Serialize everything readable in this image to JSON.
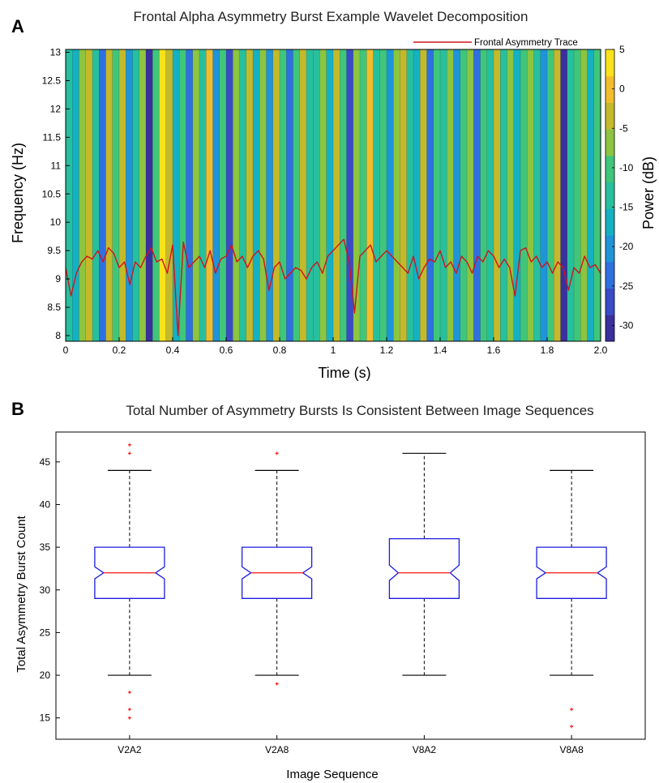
{
  "chart_data": [
    {
      "panel": "A",
      "type": "heatmap",
      "title": "Frontal Alpha Asymmetry Burst Example Wavelet Decomposition",
      "xlabel": "Time (s)",
      "ylabel": "Frequency (Hz)",
      "colorbar_label": "Power (dB)",
      "xlim": [
        0,
        2.0
      ],
      "ylim": [
        7.9,
        13.05
      ],
      "clim": [
        -32,
        5
      ],
      "x_ticks": [
        0,
        0.2,
        0.4,
        0.6,
        0.8,
        1,
        1.2,
        1.4,
        1.6,
        1.8,
        2.0
      ],
      "x_tick_labels": [
        "0",
        "0.2",
        "0.4",
        "0.6",
        "0.8",
        "1",
        "1.2",
        "1.4",
        "1.6",
        "1.8",
        "2.0"
      ],
      "y_ticks": [
        8,
        8.5,
        9,
        9.5,
        10,
        10.5,
        11,
        11.5,
        12,
        12.5,
        13
      ],
      "y_tick_labels": [
        "8",
        "8.5",
        "9",
        "9.5",
        "10",
        "10.5",
        "11",
        "11.5",
        "12",
        "12.5",
        "13"
      ],
      "colorbar_ticks": [
        5,
        0,
        -5,
        -10,
        -15,
        -20,
        -25,
        -30
      ],
      "colorbar_tick_labels": [
        "5",
        "0",
        "-5",
        "-10",
        "-15",
        "-20",
        "-25",
        "-30"
      ],
      "colors": [
        "#3b2f9e",
        "#3a4bc8",
        "#2e70e0",
        "#1f94d8",
        "#14b1c2",
        "#27c09e",
        "#3fc67a",
        "#8dc440",
        "#c4b92a",
        "#f2bd2c",
        "#f9e21a"
      ],
      "power_bands_db": [
        -12,
        -18,
        -8,
        -3,
        -15,
        -25,
        -5,
        -10,
        -2,
        -20,
        -13,
        -6,
        -29,
        -11,
        3,
        -4,
        -16,
        -9,
        -22,
        -7,
        -14,
        -1,
        -19,
        -10,
        -26,
        -6,
        -12,
        -3,
        -17,
        -8,
        -21,
        -5,
        -11,
        -24,
        -9,
        -2,
        -15,
        -13,
        -7,
        -18,
        -4,
        -11,
        -28,
        -6,
        -10,
        0,
        -14,
        -9,
        -20,
        -8,
        -5,
        -12,
        -16,
        -3,
        -22,
        -9,
        -13,
        -7,
        -19,
        -11,
        -6,
        -25,
        -10,
        -15,
        -4,
        -12,
        -8,
        -17,
        -10,
        -7,
        -14,
        -20,
        -9,
        -5,
        -30,
        -13,
        -11,
        -6,
        -16,
        -9
      ],
      "legend": [
        {
          "name": "Frontal Asymmetry Trace",
          "color": "#d0141e"
        }
      ],
      "legend_position": "top-right",
      "trace": {
        "name": "Frontal Asymmetry Trace",
        "x": [
          0,
          0.02,
          0.04,
          0.06,
          0.08,
          0.1,
          0.12,
          0.14,
          0.16,
          0.18,
          0.2,
          0.22,
          0.24,
          0.26,
          0.28,
          0.3,
          0.32,
          0.34,
          0.36,
          0.38,
          0.4,
          0.42,
          0.44,
          0.46,
          0.48,
          0.5,
          0.52,
          0.54,
          0.56,
          0.58,
          0.6,
          0.62,
          0.64,
          0.66,
          0.68,
          0.7,
          0.72,
          0.74,
          0.76,
          0.78,
          0.8,
          0.82,
          0.84,
          0.86,
          0.88,
          0.9,
          0.92,
          0.94,
          0.96,
          0.98,
          1.0,
          1.02,
          1.04,
          1.06,
          1.08,
          1.1,
          1.12,
          1.14,
          1.16,
          1.18,
          1.2,
          1.22,
          1.24,
          1.26,
          1.28,
          1.3,
          1.32,
          1.34,
          1.36,
          1.38,
          1.4,
          1.42,
          1.44,
          1.46,
          1.48,
          1.5,
          1.52,
          1.54,
          1.56,
          1.58,
          1.6,
          1.62,
          1.64,
          1.66,
          1.68,
          1.7,
          1.72,
          1.74,
          1.76,
          1.78,
          1.8,
          1.82,
          1.84,
          1.86,
          1.88,
          1.9,
          1.92,
          1.94,
          1.96,
          1.98,
          2.0
        ],
        "y": [
          9.2,
          8.7,
          9.1,
          9.3,
          9.4,
          9.35,
          9.5,
          9.3,
          9.55,
          9.45,
          9.2,
          9.3,
          8.9,
          9.3,
          9.2,
          9.4,
          9.55,
          9.3,
          9.35,
          9.1,
          9.6,
          8.0,
          9.65,
          9.2,
          9.3,
          9.4,
          9.2,
          9.5,
          9.1,
          9.35,
          9.4,
          9.6,
          9.3,
          9.4,
          9.2,
          9.4,
          9.5,
          9.35,
          8.8,
          9.2,
          9.3,
          9.0,
          9.1,
          9.2,
          9.15,
          9.0,
          9.2,
          9.3,
          9.1,
          9.4,
          9.5,
          9.6,
          9.7,
          9.3,
          8.4,
          9.4,
          9.5,
          9.6,
          9.3,
          9.4,
          9.5,
          9.4,
          9.3,
          9.2,
          9.1,
          9.4,
          9.0,
          9.2,
          9.35,
          9.3,
          9.5,
          9.2,
          9.3,
          9.1,
          9.4,
          9.3,
          9.1,
          9.4,
          9.3,
          9.5,
          9.4,
          9.2,
          9.35,
          9.2,
          8.7,
          9.5,
          9.55,
          9.3,
          9.4,
          9.2,
          9.3,
          9.1,
          9.3,
          9.2,
          8.8,
          9.2,
          9.1,
          9.4,
          9.2,
          9.25,
          9.1
        ]
      }
    },
    {
      "panel": "B",
      "type": "box",
      "title": "Total Number of Asymmetry Bursts Is Consistent Between Image Sequences",
      "xlabel": "Image Sequence",
      "ylabel": "Total Asymmetry Burst Count",
      "ylim": [
        12.5,
        48.5
      ],
      "y_ticks": [
        15,
        20,
        25,
        30,
        35,
        40,
        45
      ],
      "y_tick_labels": [
        "15",
        "20",
        "25",
        "30",
        "35",
        "40",
        "45"
      ],
      "categories": [
        "V2A2",
        "V2A8",
        "V8A2",
        "V8A8"
      ],
      "box_color": "#1c1ce0",
      "median_color": "#ff2a2a",
      "outlier_color": "#ff1a1a",
      "boxes": [
        {
          "q1": 29,
          "median": 32,
          "q3": 35,
          "notch_low": 31.3,
          "notch_high": 32.7,
          "whisker_low": 20,
          "whisker_high": 44,
          "outliers": [
            47,
            46,
            18,
            16,
            15
          ]
        },
        {
          "q1": 29,
          "median": 32,
          "q3": 35,
          "notch_low": 31.3,
          "notch_high": 32.7,
          "whisker_low": 20,
          "whisker_high": 44,
          "outliers": [
            46,
            19
          ]
        },
        {
          "q1": 29,
          "median": 32,
          "q3": 36,
          "notch_low": 31.1,
          "notch_high": 32.9,
          "whisker_low": 20,
          "whisker_high": 46,
          "outliers": []
        },
        {
          "q1": 29,
          "median": 32,
          "q3": 35,
          "notch_low": 31.3,
          "notch_high": 32.7,
          "whisker_low": 20,
          "whisker_high": 44,
          "outliers": [
            16,
            14
          ]
        }
      ]
    }
  ],
  "panels": {
    "a_letter": "A",
    "b_letter": "B"
  }
}
